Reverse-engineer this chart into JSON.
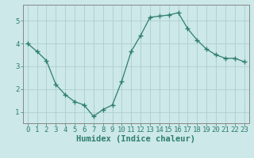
{
  "x": [
    0,
    1,
    2,
    3,
    4,
    5,
    6,
    7,
    8,
    9,
    10,
    11,
    12,
    13,
    14,
    15,
    16,
    17,
    18,
    19,
    20,
    21,
    22,
    23
  ],
  "y": [
    4.0,
    3.65,
    3.25,
    2.2,
    1.75,
    1.45,
    1.3,
    0.8,
    1.1,
    1.3,
    2.35,
    3.65,
    4.35,
    5.15,
    5.2,
    5.25,
    5.35,
    4.65,
    4.15,
    3.75,
    3.5,
    3.35,
    3.35,
    3.2
  ],
  "line_color": "#2e7d6e",
  "marker": "+",
  "marker_size": 4,
  "bg_color": "#cce8e8",
  "grid_color_major": "#b0d0d0",
  "grid_color_minor": "#c4e0e0",
  "axis_color": "#2e7d6e",
  "xlabel": "Humidex (Indice chaleur)",
  "xlabel_fontsize": 7.5,
  "tick_fontsize": 6.5,
  "yticks": [
    1,
    2,
    3,
    4,
    5
  ],
  "xtick_labels": [
    "0",
    "1",
    "2",
    "3",
    "4",
    "5",
    "6",
    "7",
    "8",
    "9",
    "10",
    "11",
    "12",
    "13",
    "14",
    "15",
    "16",
    "17",
    "18",
    "19",
    "20",
    "21",
    "22",
    "23"
  ],
  "ylim": [
    0.5,
    5.7
  ],
  "xlim": [
    -0.5,
    23.5
  ]
}
